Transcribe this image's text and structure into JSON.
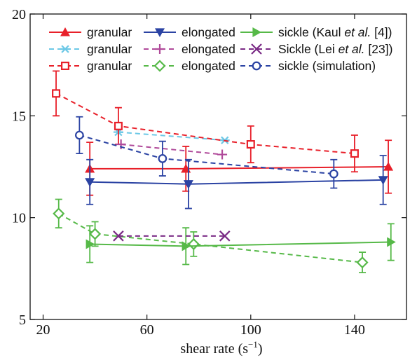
{
  "chart_data": {
    "type": "scatter",
    "xlabel": "shear rate (s",
    "xlabel_sup": "−1",
    "xlabel_suffix": ")",
    "ylabel": "",
    "xlim": [
      15,
      160
    ],
    "ylim": [
      5,
      20
    ],
    "xticks": [
      20,
      60,
      100,
      140
    ],
    "yticks": [
      5,
      10,
      15,
      20
    ],
    "grid": false,
    "legend_position": "top",
    "series": [
      {
        "name": "granular",
        "color": "#e8202a",
        "marker": "triangle-up",
        "line": "solid",
        "x": [
          38,
          75,
          153
        ],
        "y": [
          12.4,
          12.4,
          12.5
        ],
        "err": [
          1.3,
          1.1,
          1.3
        ]
      },
      {
        "name": "granular",
        "color": "#6cc8e6",
        "marker": "asterisk",
        "line": "dashed",
        "x": [
          49,
          90
        ],
        "y": [
          14.2,
          13.8
        ],
        "err": [
          0,
          0
        ]
      },
      {
        "name": "granular",
        "color": "#e8202a",
        "marker": "square-open",
        "line": "dashed",
        "x": [
          25,
          49,
          100,
          140
        ],
        "y": [
          16.1,
          14.5,
          13.6,
          13.15
        ],
        "err": [
          1.1,
          0.9,
          0.9,
          0.9
        ]
      },
      {
        "name": "elongated",
        "color": "#2b43a3",
        "marker": "triangle-down",
        "line": "solid",
        "x": [
          38,
          76,
          151
        ],
        "y": [
          11.75,
          11.65,
          11.85
        ],
        "err": [
          1.1,
          1.2,
          1.2
        ]
      },
      {
        "name": "elongated",
        "color": "#b04a9a",
        "marker": "plus",
        "line": "dashed",
        "x": [
          50,
          89
        ],
        "y": [
          13.6,
          13.1
        ],
        "err": [
          0,
          0
        ]
      },
      {
        "name": "elongated",
        "color": "#56b948",
        "marker": "diamond-open",
        "line": "dashed",
        "x": [
          26,
          40,
          78,
          143
        ],
        "y": [
          10.2,
          9.2,
          8.7,
          7.8
        ],
        "err": [
          0.7,
          0.6,
          0.6,
          0.5
        ]
      },
      {
        "name": "sickle (Kaul et al. [4])",
        "color": "#56b948",
        "marker": "triangle-right",
        "line": "solid",
        "x": [
          38,
          75,
          154
        ],
        "y": [
          8.7,
          8.6,
          8.8
        ],
        "err": [
          0.9,
          0.9,
          0.9
        ]
      },
      {
        "name": "Sickle (Lei et al. [23])",
        "color": "#7a2a85",
        "marker": "x",
        "line": "dashed",
        "x": [
          49,
          90
        ],
        "y": [
          9.1,
          9.1
        ],
        "err": [
          0,
          0
        ]
      },
      {
        "name": "sickle (simulation)",
        "color": "#2b43a3",
        "marker": "circle-open",
        "line": "dashed",
        "x": [
          34,
          66,
          132
        ],
        "y": [
          14.05,
          12.9,
          12.15
        ],
        "err": [
          0.9,
          0.85,
          0.7
        ]
      }
    ]
  }
}
